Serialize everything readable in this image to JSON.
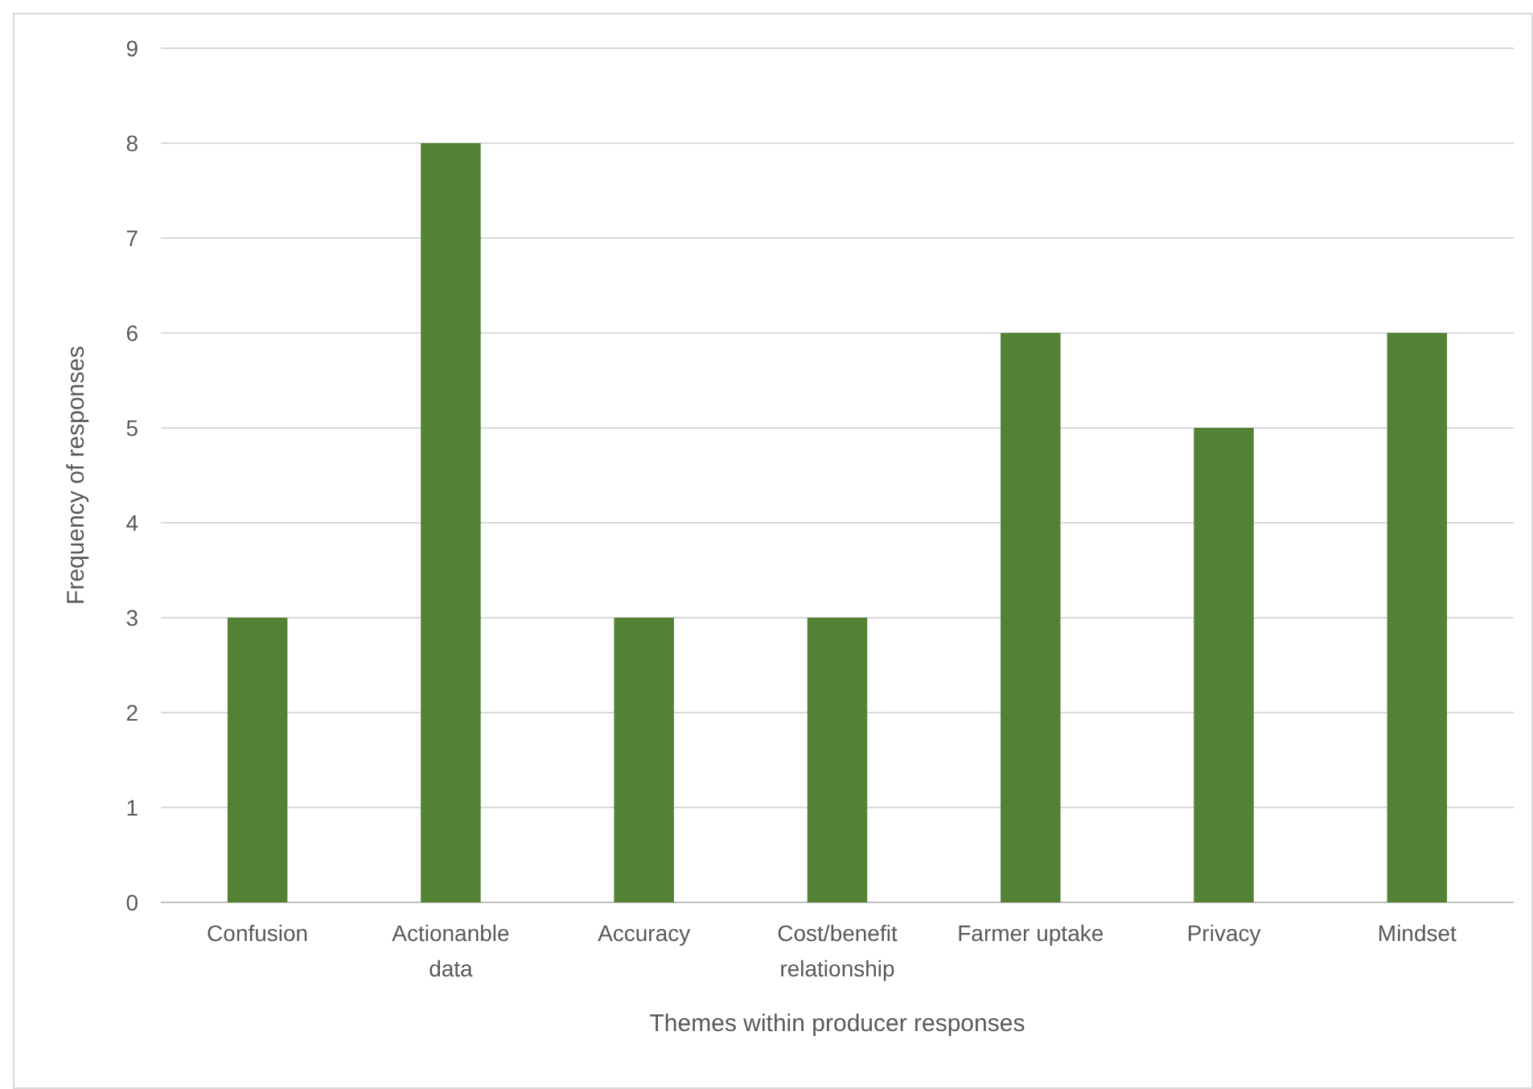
{
  "chart_data": {
    "type": "bar",
    "xlabel": "Themes within producer responses",
    "ylabel": "Frequency of responses",
    "categories": [
      "Confusion",
      "Actionanble data",
      "Accuracy",
      "Cost/benefit relationship",
      "Farmer uptake",
      "Privacy",
      "Mindset"
    ],
    "values": [
      3,
      8,
      3,
      3,
      6,
      5,
      6
    ],
    "color": "#548235",
    "ylim": [
      0,
      9
    ],
    "yticks": [
      0,
      1,
      2,
      3,
      4,
      5,
      6,
      7,
      8,
      9
    ],
    "grid": "y"
  }
}
